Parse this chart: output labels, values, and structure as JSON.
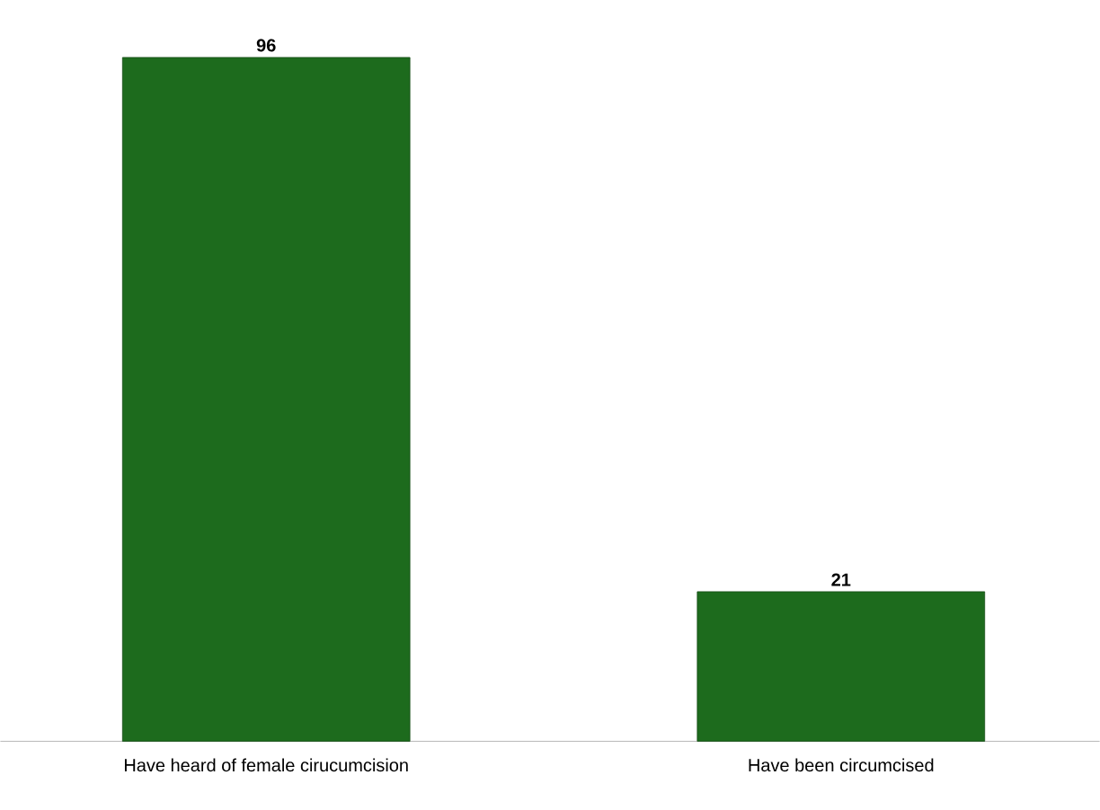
{
  "chart_data": {
    "type": "bar",
    "categories": [
      "Have heard of female cirucumcision",
      "Have been circumcised"
    ],
    "values": [
      96,
      21
    ],
    "color": "#1d6b1d",
    "data_labels": true
  }
}
